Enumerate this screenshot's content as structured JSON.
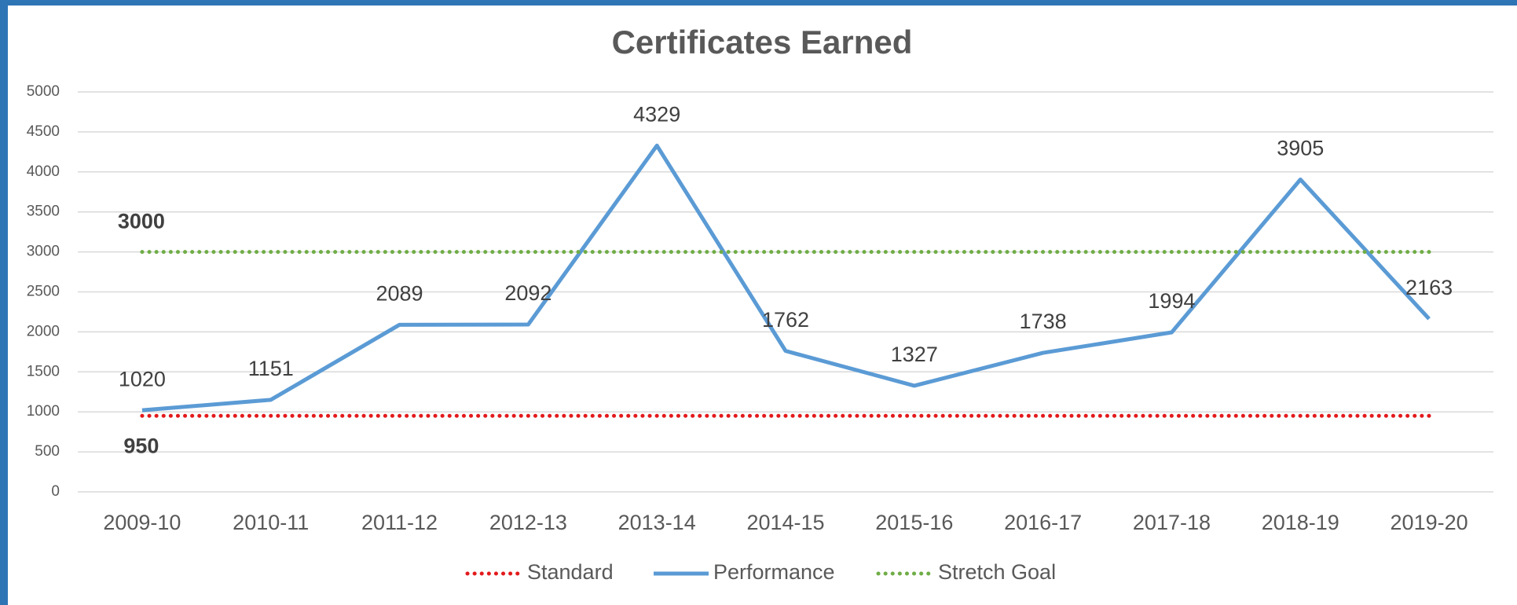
{
  "chart_data": {
    "type": "line",
    "title": "Certificates Earned",
    "categories": [
      "2009-10",
      "2010-11",
      "2011-12",
      "2012-13",
      "2013-14",
      "2014-15",
      "2015-16",
      "2016-17",
      "2017-18",
      "2018-19",
      "2019-20"
    ],
    "series": [
      {
        "name": "Standard",
        "color": "#e31a1c",
        "dash": "dotted",
        "values": [
          950,
          950,
          950,
          950,
          950,
          950,
          950,
          950,
          950,
          950,
          950
        ]
      },
      {
        "name": "Performance",
        "color": "#5b9bd5",
        "dash": "solid",
        "values": [
          1020,
          1151,
          2089,
          2092,
          4329,
          1762,
          1327,
          1738,
          1994,
          3905,
          2163
        ]
      },
      {
        "name": "Stretch Goal",
        "color": "#70ad47",
        "dash": "dotted",
        "values": [
          3000,
          3000,
          3000,
          3000,
          3000,
          3000,
          3000,
          3000,
          3000,
          3000,
          3000
        ]
      }
    ],
    "ylim": [
      0,
      5000
    ],
    "yticks": [
      0,
      500,
      1000,
      1500,
      2000,
      2500,
      3000,
      3500,
      4000,
      4500,
      5000
    ],
    "grid": true,
    "legend": "bottom"
  }
}
